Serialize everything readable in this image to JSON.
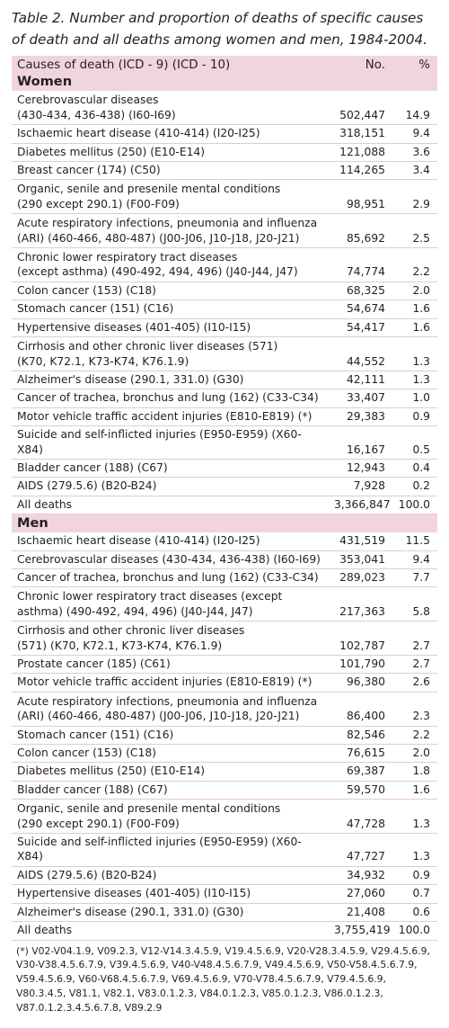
{
  "caption": "Table 2. Number and proportion of deaths of specific causes of death and all deaths among women and men, 1984-2004.",
  "header": {
    "cause": "Causes of death (ICD - 9) (ICD - 10)",
    "number": "No.",
    "percent": "%"
  },
  "women": {
    "label": "Women",
    "rows": [
      {
        "cause": [
          "Cerebrovascular diseases",
          "(430-434, 436-438) (I60-I69)"
        ],
        "number": "502,447",
        "percent": "14.9"
      },
      {
        "cause": [
          "Ischaemic heart disease (410-414) (I20-I25)"
        ],
        "number": "318,151",
        "percent": "9.4"
      },
      {
        "cause": [
          "Diabetes mellitus (250) (E10-E14)"
        ],
        "number": "121,088",
        "percent": "3.6"
      },
      {
        "cause": [
          "Breast cancer (174) (C50)"
        ],
        "number": "114,265",
        "percent": "3.4"
      },
      {
        "cause": [
          "Organic, senile and presenile mental conditions",
          "(290 except 290.1) (F00-F09)"
        ],
        "number": "98,951",
        "percent": "2.9"
      },
      {
        "cause": [
          "Acute respiratory infections, pneumonia and influenza",
          "(ARI) (460-466, 480-487) (J00-J06, J10-J18, J20-J21)"
        ],
        "number": "85,692",
        "percent": "2.5"
      },
      {
        "cause": [
          "Chronic lower respiratory tract diseases",
          "(except asthma) (490-492, 494, 496) (J40-J44, J47)"
        ],
        "number": "74,774",
        "percent": "2.2"
      },
      {
        "cause": [
          "Colon cancer (153) (C18)"
        ],
        "number": "68,325",
        "percent": "2.0"
      },
      {
        "cause": [
          "Stomach cancer (151) (C16)"
        ],
        "number": "54,674",
        "percent": "1.6"
      },
      {
        "cause": [
          "Hypertensive diseases (401-405) (I10-I15)"
        ],
        "number": "54,417",
        "percent": "1.6"
      },
      {
        "cause": [
          "Cirrhosis and other chronic liver diseases (571)",
          "(K70, K72.1, K73-K74, K76.1.9)"
        ],
        "number": "44,552",
        "percent": "1.3"
      },
      {
        "cause": [
          "Alzheimer's disease (290.1, 331.0) (G30)"
        ],
        "number": "42,111",
        "percent": "1.3"
      },
      {
        "cause": [
          "Cancer of trachea, bronchus and lung (162) (C33-C34)"
        ],
        "number": "33,407",
        "percent": "1.0"
      },
      {
        "cause": [
          "Motor vehicle traffic accident injuries (E810-E819) (*)"
        ],
        "number": "29,383",
        "percent": "0.9"
      },
      {
        "cause": [
          "Suicide and self-inflicted injuries (E950-E959) (X60-X84)"
        ],
        "number": "16,167",
        "percent": "0.5"
      },
      {
        "cause": [
          "Bladder cancer (188) (C67)"
        ],
        "number": "12,943",
        "percent": "0.4"
      },
      {
        "cause": [
          "AIDS (279.5.6) (B20-B24)"
        ],
        "number": "7,928",
        "percent": "0.2"
      }
    ],
    "total": {
      "cause": "All deaths",
      "number": "3,366,847",
      "percent": "100.0"
    }
  },
  "men": {
    "label": "Men",
    "rows": [
      {
        "cause": [
          "Ischaemic heart disease (410-414) (I20-I25)"
        ],
        "number": "431,519",
        "percent": "11.5"
      },
      {
        "cause": [
          "Cerebrovascular diseases (430-434, 436-438) (I60-I69)"
        ],
        "number": "353,041",
        "percent": "9.4"
      },
      {
        "cause": [
          "Cancer of trachea, bronchus and lung (162) (C33-C34)"
        ],
        "number": "289,023",
        "percent": "7.7"
      },
      {
        "cause": [
          "Chronic lower respiratory tract diseases (except",
          "asthma) (490-492, 494, 496) (J40-J44, J47)"
        ],
        "number": "217,363",
        "percent": "5.8"
      },
      {
        "cause": [
          "Cirrhosis and other chronic liver diseases",
          "(571) (K70, K72.1, K73-K74, K76.1.9)"
        ],
        "number": "102,787",
        "percent": "2.7"
      },
      {
        "cause": [
          "Prostate cancer (185) (C61)"
        ],
        "number": "101,790",
        "percent": "2.7"
      },
      {
        "cause": [
          "Motor vehicle traffic accident injuries (E810-E819) (*)"
        ],
        "number": "96,380",
        "percent": "2.6"
      },
      {
        "cause": [
          "Acute respiratory infections, pneumonia and influenza",
          "(ARI) (460-466, 480-487) (J00-J06, J10-J18, J20-J21)"
        ],
        "number": "86,400",
        "percent": "2.3"
      },
      {
        "cause": [
          "Stomach cancer (151) (C16)"
        ],
        "number": "82,546",
        "percent": "2.2"
      },
      {
        "cause": [
          "Colon cancer (153) (C18)"
        ],
        "number": "76,615",
        "percent": "2.0"
      },
      {
        "cause": [
          "Diabetes mellitus (250) (E10-E14)"
        ],
        "number": "69,387",
        "percent": "1.8"
      },
      {
        "cause": [
          "Bladder cancer (188) (C67)"
        ],
        "number": "59,570",
        "percent": "1.6"
      },
      {
        "cause": [
          "Organic, senile and presenile mental conditions",
          "(290 except 290.1) (F00-F09)"
        ],
        "number": "47,728",
        "percent": "1.3"
      },
      {
        "cause": [
          "Suicide and self-inflicted injuries (E950-E959) (X60-X84)"
        ],
        "number": "47,727",
        "percent": "1.3"
      },
      {
        "cause": [
          "AIDS (279.5.6) (B20-B24)"
        ],
        "number": "34,932",
        "percent": "0.9"
      },
      {
        "cause": [
          "Hypertensive diseases (401-405) (I10-I15)"
        ],
        "number": "27,060",
        "percent": "0.7"
      },
      {
        "cause": [
          "Alzheimer's disease (290.1, 331.0) (G30)"
        ],
        "number": "21,408",
        "percent": "0.6"
      }
    ],
    "total": {
      "cause": "All deaths",
      "number": "3,755,419",
      "percent": "100.0"
    }
  },
  "footnote": "(*) V02-V04.1.9, V09.2.3, V12-V14.3.4.5.9, V19.4.5.6.9, V20-V28.3.4.5.9, V29.4.5.6.9, V30-V38.4.5.6.7.9, V39.4.5.6.9, V40-V48.4.5.6.7.9, V49.4.5.6.9, V50-V58.4.5.6.7.9, V59.4.5.6.9, V60-V68.4.5.6.7.9, V69.4.5.6.9, V70-V78.4.5.6.7.9, V79.4.5.6.9, V80.3.4.5, V81.1, V82.1, V83.0.1.2.3, V84.0.1.2.3, V85.0.1.2.3, V86.0.1.2.3, V87.0.1.2.3.4.5.6.7.8, V89.2.9"
}
